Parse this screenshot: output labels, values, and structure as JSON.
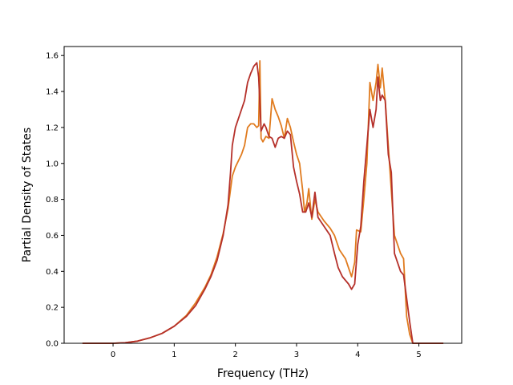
{
  "chart_data": {
    "type": "line",
    "title": "",
    "xlabel": "Frequency (THz)",
    "ylabel": "Partial Density of States",
    "xlim": [
      -0.8,
      5.7
    ],
    "ylim": [
      0.0,
      1.65
    ],
    "xticks": [
      0,
      1,
      2,
      3,
      4,
      5
    ],
    "yticks": [
      0.0,
      0.2,
      0.4,
      0.6,
      0.8,
      1.0,
      1.2,
      1.4,
      1.6
    ],
    "xtick_labels": [
      "0",
      "1",
      "2",
      "3",
      "4",
      "5"
    ],
    "ytick_labels": [
      "0.0",
      "0.2",
      "0.4",
      "0.6",
      "0.8",
      "1.0",
      "1.2",
      "1.4",
      "1.6"
    ],
    "grid": false,
    "legend": "none",
    "series": [
      {
        "color": "#e07b1f",
        "points": [
          [
            -0.5,
            0.0
          ],
          [
            0.0,
            0.0
          ],
          [
            0.2,
            0.003
          ],
          [
            0.4,
            0.012
          ],
          [
            0.6,
            0.03
          ],
          [
            0.8,
            0.055
          ],
          [
            1.0,
            0.095
          ],
          [
            1.2,
            0.155
          ],
          [
            1.35,
            0.225
          ],
          [
            1.5,
            0.31
          ],
          [
            1.6,
            0.38
          ],
          [
            1.7,
            0.48
          ],
          [
            1.8,
            0.61
          ],
          [
            1.88,
            0.75
          ],
          [
            1.95,
            0.93
          ],
          [
            2.0,
            0.98
          ],
          [
            2.1,
            1.05
          ],
          [
            2.15,
            1.1
          ],
          [
            2.2,
            1.2
          ],
          [
            2.25,
            1.22
          ],
          [
            2.3,
            1.22
          ],
          [
            2.35,
            1.2
          ],
          [
            2.38,
            1.21
          ],
          [
            2.4,
            1.57
          ],
          [
            2.42,
            1.14
          ],
          [
            2.45,
            1.12
          ],
          [
            2.5,
            1.15
          ],
          [
            2.55,
            1.14
          ],
          [
            2.6,
            1.36
          ],
          [
            2.65,
            1.3
          ],
          [
            2.7,
            1.26
          ],
          [
            2.75,
            1.21
          ],
          [
            2.8,
            1.14
          ],
          [
            2.85,
            1.25
          ],
          [
            2.9,
            1.2
          ],
          [
            2.95,
            1.12
          ],
          [
            3.0,
            1.05
          ],
          [
            3.05,
            1.0
          ],
          [
            3.1,
            0.85
          ],
          [
            3.13,
            0.73
          ],
          [
            3.17,
            0.78
          ],
          [
            3.2,
            0.86
          ],
          [
            3.25,
            0.69
          ],
          [
            3.3,
            0.8
          ],
          [
            3.35,
            0.73
          ],
          [
            3.45,
            0.68
          ],
          [
            3.55,
            0.64
          ],
          [
            3.62,
            0.6
          ],
          [
            3.7,
            0.52
          ],
          [
            3.8,
            0.47
          ],
          [
            3.85,
            0.42
          ],
          [
            3.9,
            0.37
          ],
          [
            3.95,
            0.45
          ],
          [
            3.98,
            0.63
          ],
          [
            4.05,
            0.62
          ],
          [
            4.1,
            0.8
          ],
          [
            4.15,
            1.0
          ],
          [
            4.2,
            1.45
          ],
          [
            4.25,
            1.35
          ],
          [
            4.3,
            1.45
          ],
          [
            4.33,
            1.55
          ],
          [
            4.37,
            1.42
          ],
          [
            4.4,
            1.53
          ],
          [
            4.45,
            1.35
          ],
          [
            4.5,
            1.1
          ],
          [
            4.55,
            0.85
          ],
          [
            4.6,
            0.6
          ],
          [
            4.65,
            0.55
          ],
          [
            4.7,
            0.5
          ],
          [
            4.75,
            0.47
          ],
          [
            4.8,
            0.15
          ],
          [
            4.85,
            0.05
          ],
          [
            4.9,
            0.0
          ],
          [
            5.0,
            0.0
          ],
          [
            5.4,
            0.0
          ]
        ]
      },
      {
        "color": "#b5302a",
        "points": [
          [
            -0.5,
            0.0
          ],
          [
            0.0,
            0.0
          ],
          [
            0.2,
            0.003
          ],
          [
            0.4,
            0.012
          ],
          [
            0.6,
            0.03
          ],
          [
            0.8,
            0.055
          ],
          [
            1.0,
            0.095
          ],
          [
            1.2,
            0.15
          ],
          [
            1.35,
            0.21
          ],
          [
            1.5,
            0.3
          ],
          [
            1.6,
            0.37
          ],
          [
            1.7,
            0.46
          ],
          [
            1.8,
            0.6
          ],
          [
            1.88,
            0.77
          ],
          [
            1.92,
            0.95
          ],
          [
            1.95,
            1.1
          ],
          [
            2.0,
            1.2
          ],
          [
            2.05,
            1.25
          ],
          [
            2.1,
            1.3
          ],
          [
            2.15,
            1.35
          ],
          [
            2.2,
            1.45
          ],
          [
            2.25,
            1.5
          ],
          [
            2.3,
            1.54
          ],
          [
            2.35,
            1.56
          ],
          [
            2.38,
            1.48
          ],
          [
            2.42,
            1.18
          ],
          [
            2.47,
            1.22
          ],
          [
            2.5,
            1.2
          ],
          [
            2.55,
            1.15
          ],
          [
            2.6,
            1.14
          ],
          [
            2.65,
            1.09
          ],
          [
            2.7,
            1.14
          ],
          [
            2.75,
            1.15
          ],
          [
            2.8,
            1.14
          ],
          [
            2.85,
            1.18
          ],
          [
            2.9,
            1.16
          ],
          [
            2.95,
            0.98
          ],
          [
            3.0,
            0.9
          ],
          [
            3.05,
            0.83
          ],
          [
            3.1,
            0.73
          ],
          [
            3.15,
            0.73
          ],
          [
            3.2,
            0.78
          ],
          [
            3.25,
            0.7
          ],
          [
            3.3,
            0.84
          ],
          [
            3.35,
            0.7
          ],
          [
            3.45,
            0.65
          ],
          [
            3.55,
            0.6
          ],
          [
            3.62,
            0.5
          ],
          [
            3.68,
            0.42
          ],
          [
            3.75,
            0.37
          ],
          [
            3.85,
            0.33
          ],
          [
            3.9,
            0.3
          ],
          [
            3.95,
            0.33
          ],
          [
            4.0,
            0.55
          ],
          [
            4.05,
            0.65
          ],
          [
            4.1,
            0.9
          ],
          [
            4.15,
            1.1
          ],
          [
            4.2,
            1.3
          ],
          [
            4.25,
            1.2
          ],
          [
            4.3,
            1.3
          ],
          [
            4.33,
            1.48
          ],
          [
            4.37,
            1.35
          ],
          [
            4.4,
            1.38
          ],
          [
            4.45,
            1.35
          ],
          [
            4.5,
            1.05
          ],
          [
            4.55,
            0.95
          ],
          [
            4.6,
            0.5
          ],
          [
            4.65,
            0.45
          ],
          [
            4.7,
            0.4
          ],
          [
            4.75,
            0.38
          ],
          [
            4.8,
            0.25
          ],
          [
            4.85,
            0.12
          ],
          [
            4.9,
            0.0
          ],
          [
            5.0,
            0.0
          ],
          [
            5.4,
            0.0
          ]
        ]
      }
    ]
  }
}
